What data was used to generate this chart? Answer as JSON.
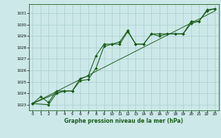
{
  "title": "",
  "xlabel": "Graphe pression niveau de la mer (hPa)",
  "bg_color": "#cce8e8",
  "grid_color": "#aacccc",
  "line_color": "#1a5c1a",
  "xlim": [
    -0.5,
    23.5
  ],
  "ylim": [
    1022.5,
    1031.8
  ],
  "yticks": [
    1023,
    1024,
    1025,
    1026,
    1027,
    1028,
    1029,
    1030,
    1031
  ],
  "xticks": [
    0,
    1,
    2,
    3,
    4,
    5,
    6,
    7,
    8,
    9,
    10,
    11,
    12,
    13,
    14,
    15,
    16,
    17,
    18,
    19,
    20,
    21,
    22,
    23
  ],
  "series1_x": [
    0,
    1,
    2,
    3,
    4,
    5,
    6,
    7,
    8,
    9,
    10,
    11,
    12,
    13,
    14,
    15,
    16,
    17,
    18,
    19,
    20,
    21,
    22,
    23
  ],
  "series1_y": [
    1023.1,
    1023.7,
    1023.2,
    1024.2,
    1024.2,
    1024.2,
    1025.3,
    1025.5,
    1027.3,
    1028.3,
    1028.3,
    1028.3,
    1029.4,
    1028.3,
    1028.3,
    1029.2,
    1029.2,
    1029.2,
    1029.2,
    1029.2,
    1030.3,
    1030.3,
    1031.3,
    1031.4
  ],
  "series2_x": [
    0,
    3,
    4,
    5,
    6,
    7,
    8,
    9,
    10,
    11,
    12,
    13,
    14,
    15,
    16,
    17,
    18,
    19,
    20,
    21,
    22,
    23
  ],
  "series2_y": [
    1023.1,
    1024.0,
    1024.2,
    1024.2,
    1025.1,
    1025.2,
    1026.2,
    1028.1,
    1028.3,
    1028.5,
    1029.5,
    1028.3,
    1028.3,
    1029.2,
    1029.0,
    1029.2,
    1029.2,
    1029.2,
    1030.1,
    1030.3,
    1031.2,
    1031.4
  ],
  "series3_x": [
    0,
    2,
    3,
    4
  ],
  "series3_y": [
    1023.1,
    1023.0,
    1024.0,
    1024.2
  ],
  "trend_x": [
    0,
    23
  ],
  "trend_y": [
    1023.1,
    1031.2
  ]
}
